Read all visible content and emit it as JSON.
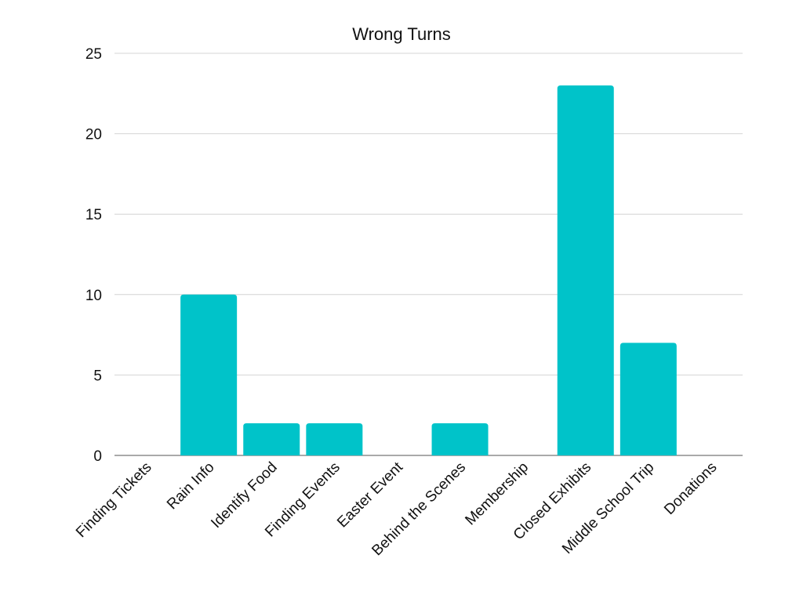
{
  "chart_data": {
    "type": "bar",
    "title": "Wrong Turns",
    "xlabel": "",
    "ylabel": "",
    "categories": [
      "Finding Tickets",
      "Rain Info",
      "Identify Food",
      "Finding Events",
      "Easter Event",
      "Behind the Scenes",
      "Membership",
      "Closed Exhibits",
      "Middle School Trip",
      "Donations"
    ],
    "values": [
      0,
      10,
      2,
      2,
      0,
      2,
      0,
      23,
      7,
      0
    ],
    "ylim": [
      0,
      25
    ],
    "yticks": [
      "0",
      "5",
      "10",
      "15",
      "20",
      "25"
    ],
    "grid": true,
    "legend": "none",
    "bar_color": "#00c3c9"
  }
}
